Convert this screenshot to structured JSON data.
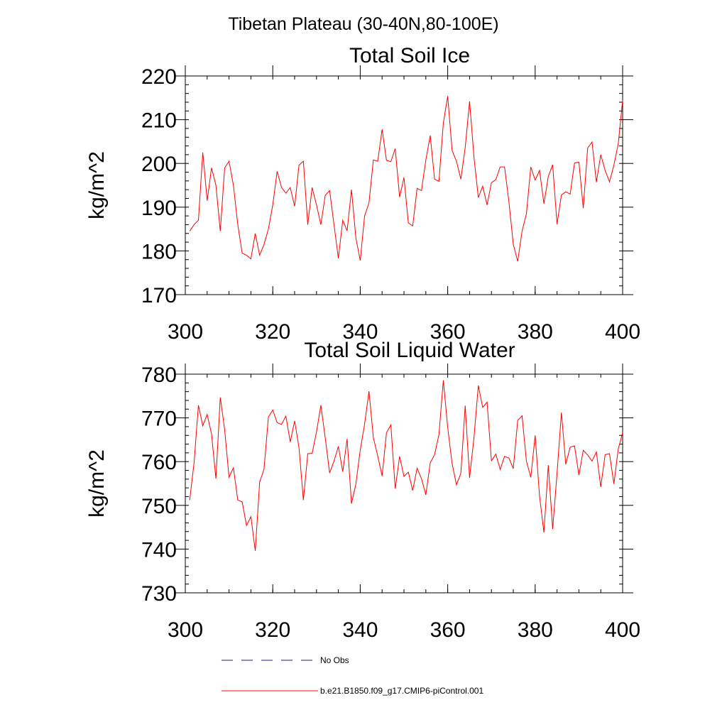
{
  "figure_title": "Tibetan Plateau (30-40N,80-100E)",
  "colors": {
    "series": "#ff0000",
    "obs": "#1a1a8c",
    "axis": "#000000"
  },
  "legend": {
    "placement": "bottom",
    "entries": [
      {
        "label": "No Obs",
        "style": "dashed",
        "color": "#1a1a8c"
      },
      {
        "label": "b.e21.B1850.f09_g17.CMIP6-piControl.001",
        "style": "solid",
        "color": "#ff0000"
      }
    ]
  },
  "chart_data": [
    {
      "type": "line",
      "title": "Total Soil Ice",
      "xlabel": "",
      "ylabel": "kg/m^2",
      "xlim": [
        300,
        400
      ],
      "ylim": [
        170,
        220
      ],
      "xticks": [
        300,
        320,
        340,
        360,
        380,
        400
      ],
      "yticks": [
        170,
        180,
        190,
        200,
        210,
        220
      ],
      "x_minor_step": 5,
      "y_minor_step": 2,
      "grid": false,
      "series": [
        {
          "x_start": 301,
          "x_step": 1,
          "values": [
            184.5,
            186,
            187,
            202.5,
            191.5,
            199,
            195,
            184.5,
            199,
            200.5,
            195,
            186,
            179.5,
            179,
            178.2,
            184,
            179,
            181.5,
            185,
            190.5,
            198.2,
            194.5,
            193.2,
            194.5,
            190.2,
            199.6,
            200.5,
            186,
            194.5,
            190.5,
            186,
            192.7,
            193.8,
            186,
            178.3,
            187,
            184.6,
            194,
            183,
            177.8,
            188,
            191,
            200.8,
            200.5,
            207.8,
            200.7,
            200.4,
            203.4,
            192.3,
            196.8,
            186.4,
            185.7,
            194.3,
            193.8,
            200.8,
            206.4,
            196.4,
            195.9,
            209.2,
            215.4,
            203,
            200.5,
            196.4,
            203.6,
            214.2,
            201.5,
            192.2,
            194.8,
            190.5,
            195.6,
            196.3,
            199.2,
            199.2,
            191.2,
            181.5,
            177.6,
            184.5,
            188.5,
            199.2,
            196.2,
            198.4,
            190.8,
            197,
            199.7,
            186.1,
            192.8,
            193.5,
            193,
            200.1,
            200.3,
            189.8,
            203.5,
            204.9,
            195.7,
            202,
            198.4,
            195.8,
            199.6,
            204.5,
            214.5
          ]
        }
      ]
    },
    {
      "type": "line",
      "title": "Total Soil Liquid Water",
      "xlabel": "",
      "ylabel": "kg/m^2",
      "xlim": [
        300,
        400
      ],
      "ylim": [
        730,
        780
      ],
      "xticks": [
        300,
        320,
        340,
        360,
        380,
        400
      ],
      "yticks": [
        730,
        740,
        750,
        760,
        770,
        780
      ],
      "x_minor_step": 5,
      "y_minor_step": 2,
      "grid": false,
      "series": [
        {
          "x_start": 301,
          "x_step": 1,
          "values": [
            751.2,
            759.7,
            772.9,
            768.2,
            770.8,
            766.3,
            756.1,
            774.7,
            767.3,
            756.4,
            758.6,
            751.2,
            750.8,
            745.4,
            747.4,
            739.6,
            755.3,
            758.3,
            770.2,
            771.8,
            768.9,
            768.5,
            770.4,
            764.5,
            769.3,
            763.2,
            751.2,
            761.8,
            761.9,
            766.8,
            772.9,
            765.4,
            757.4,
            760.1,
            763.5,
            757.7,
            765.2,
            750.4,
            754.9,
            762.6,
            768.6,
            776.1,
            765.5,
            761.3,
            756.7,
            766.6,
            768.4,
            753.8,
            761.2,
            756.6,
            757.6,
            753.4,
            758.5,
            756.1,
            752.4,
            759.7,
            761.6,
            766.2,
            778.6,
            767.8,
            759.6,
            754.7,
            757.3,
            772.8,
            756.3,
            765.4,
            777.4,
            772.4,
            773.6,
            760.2,
            761.7,
            758.2,
            761.2,
            760.8,
            758.4,
            769.4,
            770.5,
            760.1,
            756.4,
            766,
            752.1,
            743.8,
            759.2,
            744.6,
            757.3,
            771.2,
            759.4,
            763.3,
            763.6,
            756.9,
            762.6,
            761.5,
            760.1,
            762.2,
            754.2,
            761.6,
            761.8,
            754.9,
            762.9,
            766.6
          ]
        }
      ]
    }
  ]
}
